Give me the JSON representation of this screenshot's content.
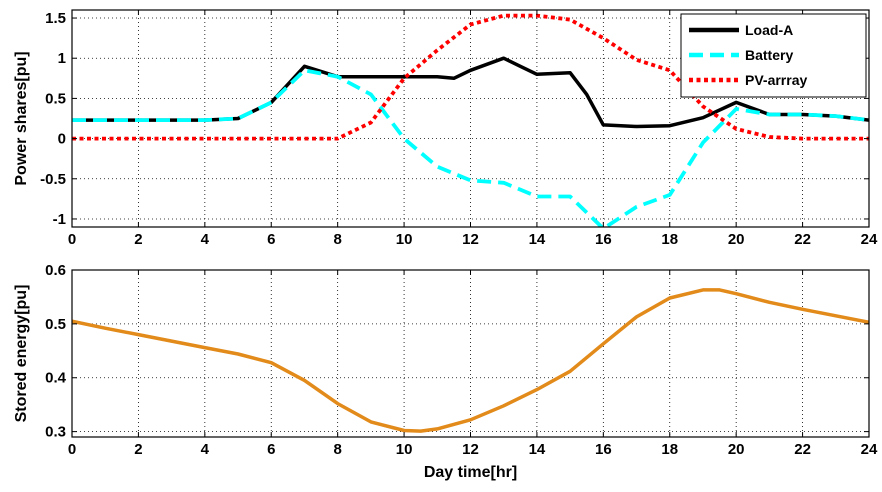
{
  "chart_data": [
    {
      "type": "line",
      "xlabel": "",
      "ylabel": "Power shares[pu]",
      "xlim": [
        0,
        24
      ],
      "ylim": [
        -1.1,
        1.6
      ],
      "xticks": [
        0,
        2,
        4,
        6,
        8,
        10,
        12,
        14,
        16,
        18,
        20,
        22,
        24
      ],
      "yticks": [
        -1,
        -0.5,
        0,
        0.5,
        1,
        1.5
      ],
      "ytick_labels": [
        "-1",
        "-0.5",
        "0",
        "0.5",
        "1",
        "1.5"
      ],
      "grid": true,
      "legend_position": "top-right",
      "series": [
        {
          "name": "Load-A",
          "color": "#000000",
          "style": "solid",
          "x": [
            0,
            1,
            2,
            3,
            4,
            5,
            6,
            7,
            8,
            9,
            10,
            11,
            11.5,
            12,
            13,
            13.5,
            14,
            15,
            15.5,
            16,
            17,
            18,
            19,
            20,
            21,
            22,
            23,
            24
          ],
          "y": [
            0.23,
            0.23,
            0.23,
            0.23,
            0.23,
            0.25,
            0.45,
            0.9,
            0.77,
            0.77,
            0.77,
            0.77,
            0.75,
            0.85,
            1.0,
            0.9,
            0.8,
            0.82,
            0.55,
            0.17,
            0.15,
            0.16,
            0.26,
            0.45,
            0.3,
            0.3,
            0.28,
            0.23
          ]
        },
        {
          "name": "Battery",
          "color": "#00ffff",
          "style": "dashed",
          "x": [
            0,
            1,
            2,
            3,
            4,
            5,
            6,
            7,
            8,
            9,
            10,
            11,
            12,
            13,
            14,
            15,
            16,
            17,
            18,
            19,
            20,
            21,
            22,
            23,
            24
          ],
          "y": [
            0.23,
            0.23,
            0.23,
            0.23,
            0.23,
            0.25,
            0.45,
            0.85,
            0.77,
            0.55,
            0.0,
            -0.35,
            -0.52,
            -0.55,
            -0.72,
            -0.72,
            -1.12,
            -0.85,
            -0.7,
            -0.05,
            0.37,
            0.3,
            0.3,
            0.28,
            0.23
          ]
        },
        {
          "name": "PV-arrray",
          "color": "#ff0000",
          "style": "dotted",
          "x": [
            0,
            1,
            2,
            3,
            4,
            5,
            6,
            7,
            8,
            9,
            10,
            11,
            12,
            13,
            14,
            15,
            16,
            17,
            18,
            19,
            20,
            21,
            22,
            23,
            24
          ],
          "y": [
            0,
            0,
            0,
            0,
            0,
            0,
            0,
            0,
            0,
            0.2,
            0.75,
            1.1,
            1.42,
            1.53,
            1.53,
            1.48,
            1.25,
            0.98,
            0.85,
            0.4,
            0.12,
            0.02,
            0,
            0,
            0
          ]
        }
      ]
    },
    {
      "type": "line",
      "xlabel": "Day time[hr]",
      "ylabel": "Stored energy[pu]",
      "xlim": [
        0,
        24
      ],
      "ylim": [
        0.29,
        0.6
      ],
      "xticks": [
        0,
        2,
        4,
        6,
        8,
        10,
        12,
        14,
        16,
        18,
        20,
        22,
        24
      ],
      "yticks": [
        0.3,
        0.4,
        0.5,
        0.6
      ],
      "ytick_labels": [
        "0.3",
        "0.4",
        "0.5",
        "0.6"
      ],
      "grid": true,
      "series": [
        {
          "name": "",
          "color": "#e28a1a",
          "style": "solid",
          "x": [
            0,
            1,
            2,
            3,
            4,
            5,
            6,
            7,
            8,
            9,
            10,
            10.5,
            11,
            12,
            13,
            14,
            15,
            16,
            17,
            18,
            19,
            19.5,
            20,
            21,
            22,
            23,
            24
          ],
          "y": [
            0.505,
            0.492,
            0.48,
            0.468,
            0.456,
            0.444,
            0.428,
            0.395,
            0.352,
            0.318,
            0.302,
            0.301,
            0.305,
            0.322,
            0.348,
            0.378,
            0.412,
            0.463,
            0.513,
            0.548,
            0.563,
            0.563,
            0.556,
            0.54,
            0.527,
            0.515,
            0.503
          ]
        }
      ]
    }
  ]
}
